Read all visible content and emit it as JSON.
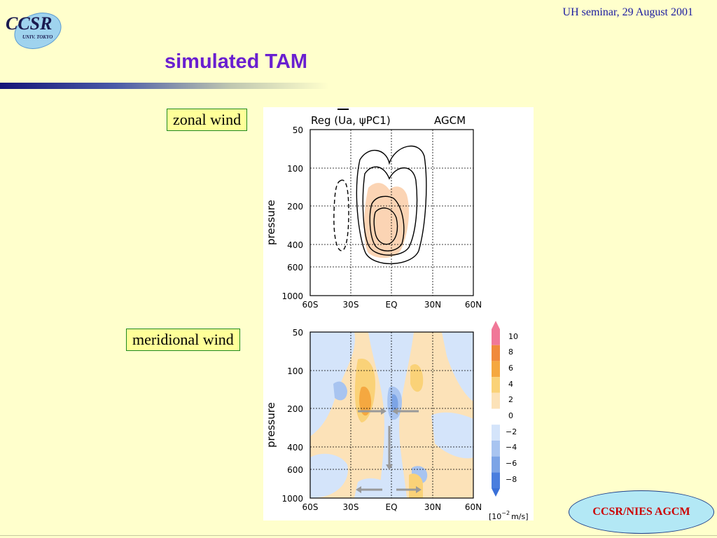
{
  "logo": {
    "primary_text": "CCSR",
    "sub_text": "UNIV. TOKYO"
  },
  "header": {
    "note": "UH seminar, 29 August 2001"
  },
  "title": "simulated TAM",
  "labels": {
    "zonal": "zonal wind",
    "meridional": "meridional wind"
  },
  "badge": "CCSR/NIES AGCM",
  "chart_data": [
    {
      "type": "contour",
      "title_parts": {
        "prefix": "Reg (",
        "var": "U",
        "suffix": "a, ",
        "psi": "ψ",
        "pc": "PC1)"
      },
      "model_label": "AGCM",
      "xlabel": "",
      "ylabel": "pressure",
      "x_ticks": [
        "60S",
        "30S",
        "EQ",
        "30N",
        "60N"
      ],
      "y_ticks": [
        "50",
        "100",
        "200",
        "400",
        "600",
        "1000"
      ],
      "grid": true,
      "colors": {
        "positive_fill": "#fbd4b4"
      }
    },
    {
      "type": "filled-contour",
      "xlabel": "",
      "ylabel": "pressure",
      "x_ticks": [
        "60S",
        "30S",
        "EQ",
        "30N",
        "60N"
      ],
      "y_ticks": [
        "50",
        "100",
        "200",
        "400",
        "600",
        "1000"
      ],
      "grid": true,
      "colorbar": {
        "levels": [
          "10",
          "8",
          "6",
          "4",
          "2",
          "0",
          "−2",
          "−4",
          "−6",
          "−8"
        ],
        "unit_prefix": "[10",
        "unit_exp": "−2",
        "unit_suffix": "m/s]",
        "colors": [
          "#f07898",
          "#f08a3c",
          "#f5a840",
          "#fad278",
          "#fce2b8",
          "#ffffff",
          "#d4e4fa",
          "#a8c4f0",
          "#7ca4e6",
          "#4a7ede"
        ]
      }
    }
  ]
}
